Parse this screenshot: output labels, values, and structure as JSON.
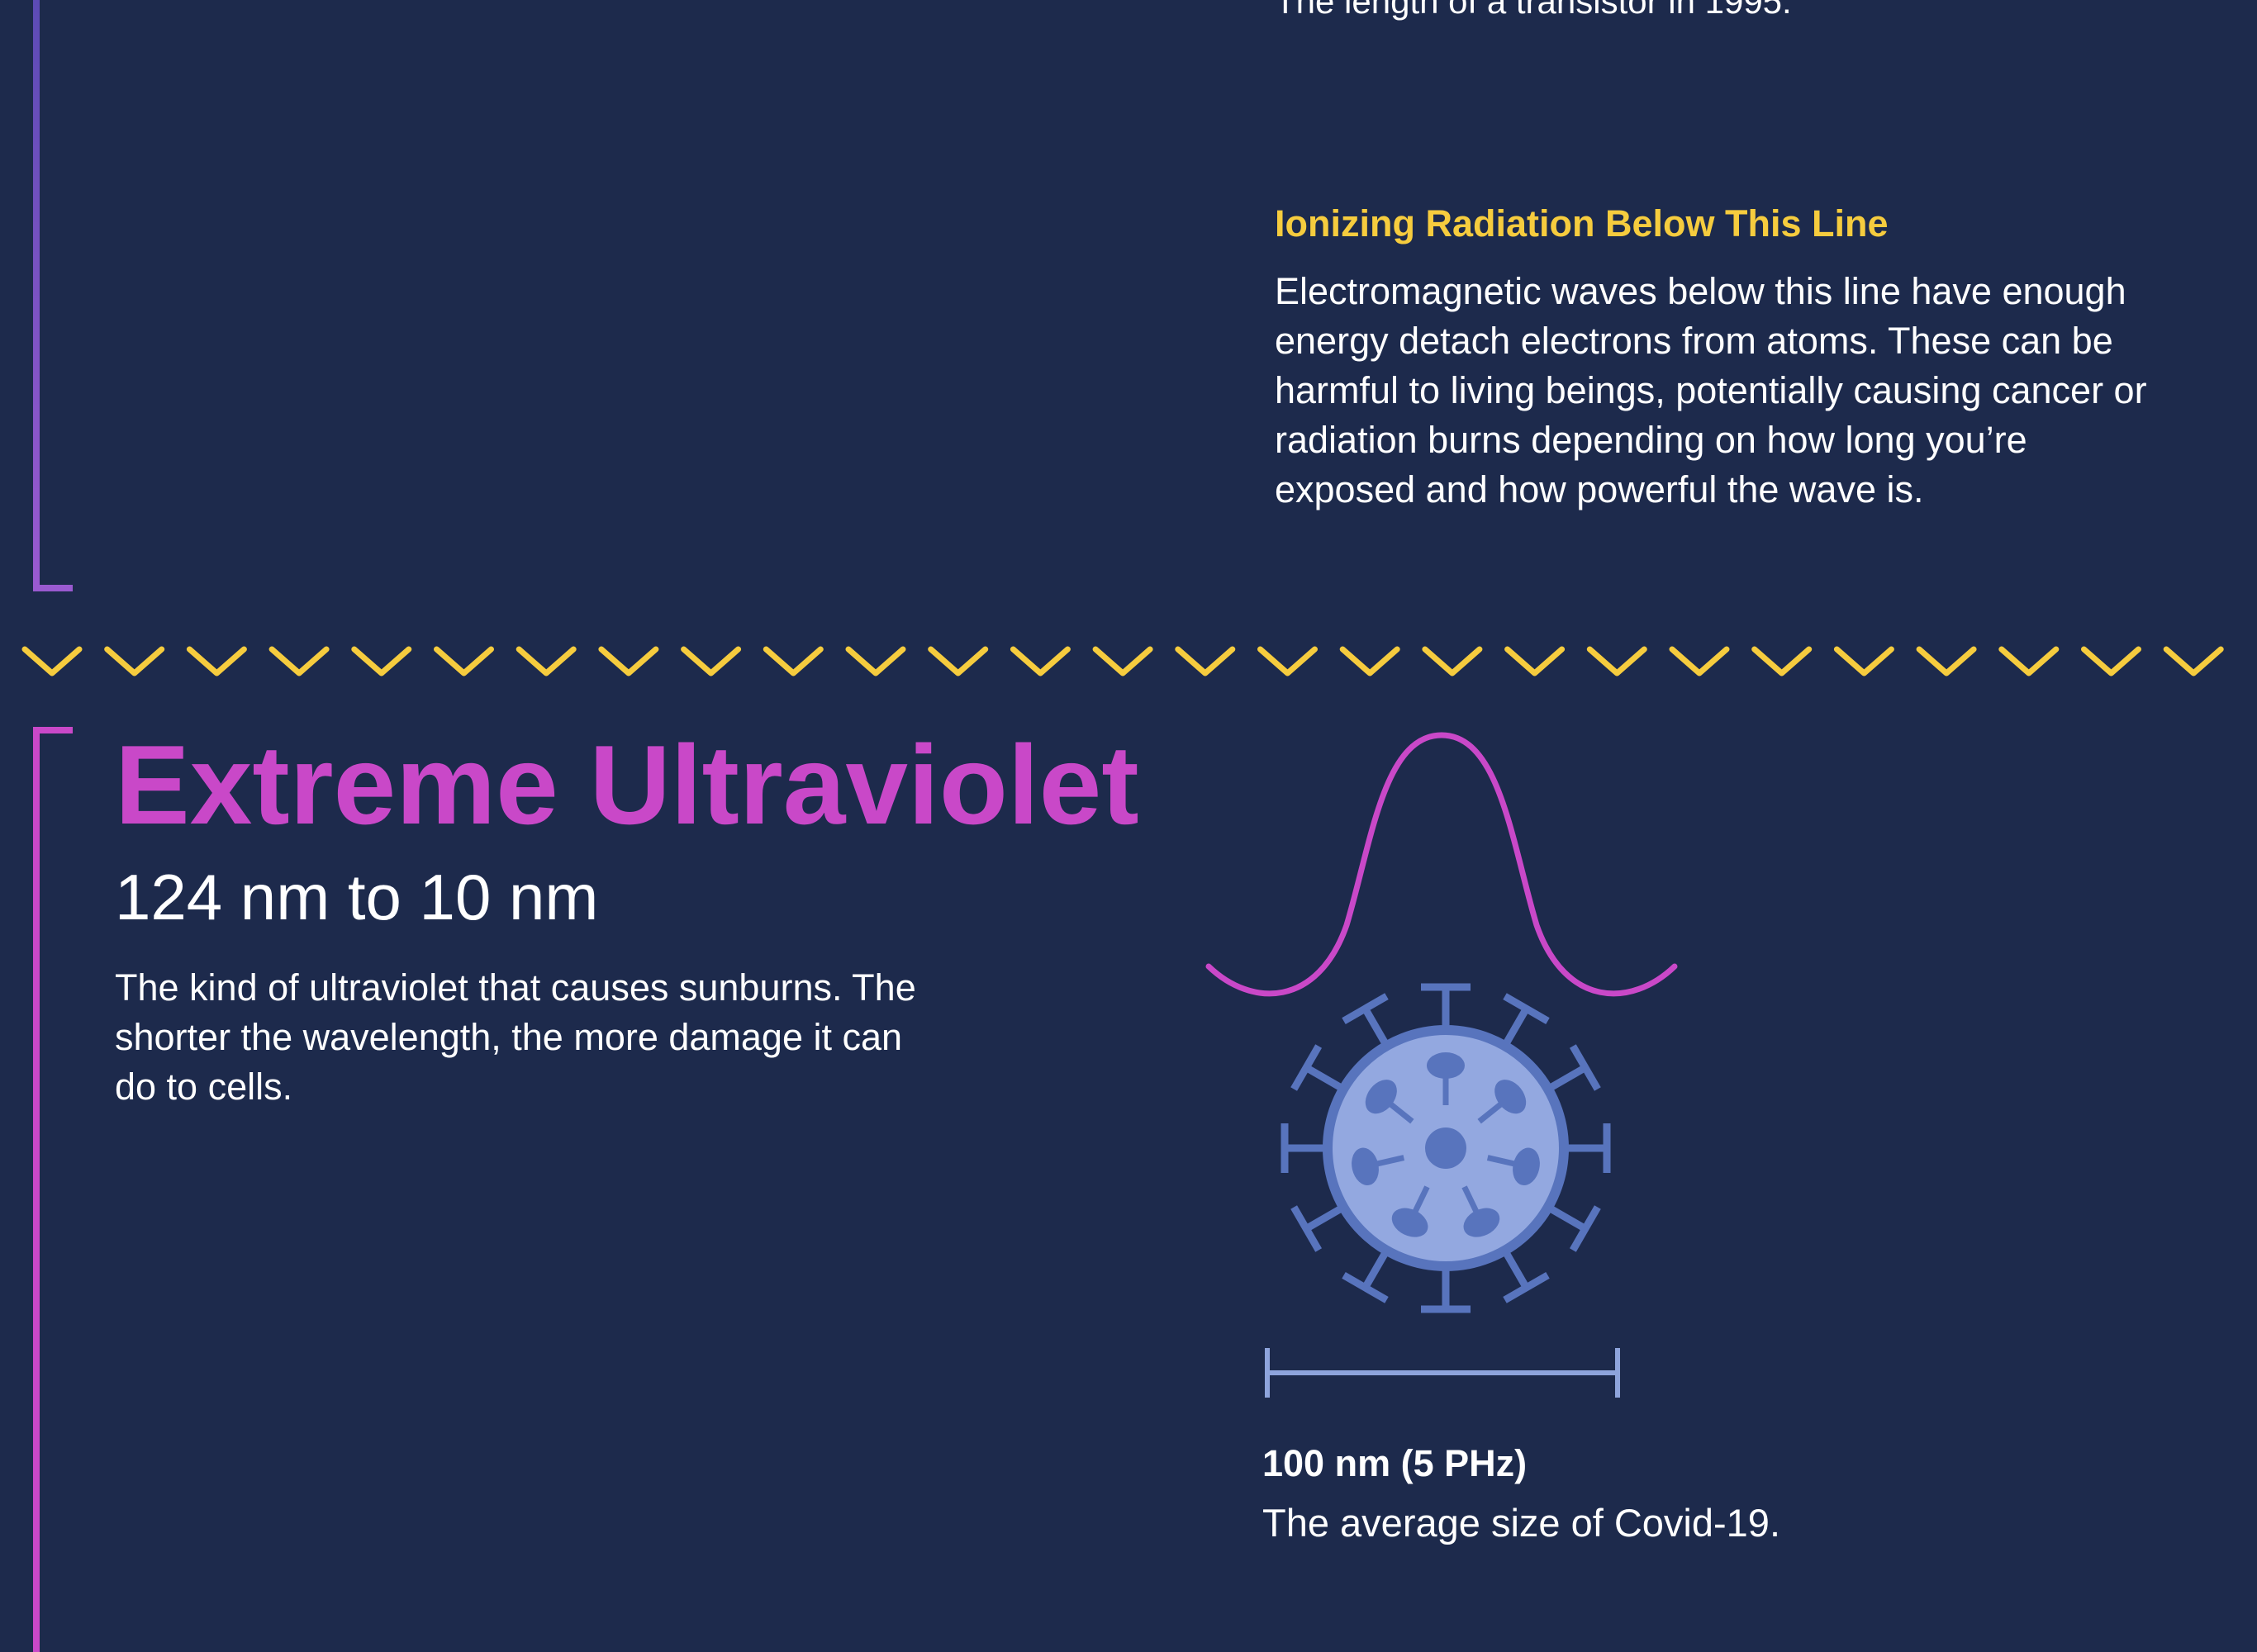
{
  "previous_section": {
    "partial_caption": "The length of a transistor in 1995."
  },
  "ionizing_note": {
    "heading": "Ionizing Radiation Below This Line",
    "body": "Electromagnetic waves below this line have enough energy detach electrons from atoms. These can be harmful to living beings, potentially causing cancer or radiation burns depending on how long you’re exposed and how powerful the wave is."
  },
  "section": {
    "title": "Extreme Ultraviolet",
    "range": "124 nm to 10 nm",
    "description": "The kind of ultraviolet that causes sunburns. The shorter the wavelength, the more damage it can do to cells."
  },
  "scale_example": {
    "label": "100 nm (5 PHz)",
    "description": "The average size of Covid-19."
  },
  "colors": {
    "background": "#1d2a4c",
    "accent_yellow": "#f6cc3e",
    "accent_magenta": "#c948c8",
    "bracket_purple": "#8a57c9",
    "virus_outline": "#5874bd",
    "virus_fill": "#93a8e0",
    "scale_bar": "#8ea4dc"
  },
  "icons": [
    "wave-pulse-icon",
    "virus-icon",
    "scale-bar-icon",
    "chevron-down-icon"
  ]
}
